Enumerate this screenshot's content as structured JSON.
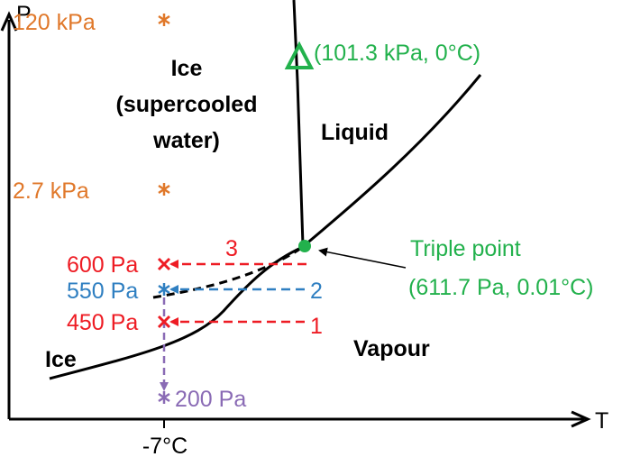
{
  "axes": {
    "y_label": "P",
    "x_label": "T",
    "x_tick": "-7°C"
  },
  "regions": {
    "ice_supercooled_line1": "Ice",
    "ice_supercooled_line2": "(supercooled",
    "ice_supercooled_line3": "water)",
    "liquid": "Liquid",
    "vapour": "Vapour",
    "ice": "Ice"
  },
  "pressure_labels": {
    "p120": "120 kPa",
    "p2_7": "2.7 kPa",
    "p600": "600 Pa",
    "p550": "550 Pa",
    "p450": "450 Pa",
    "p200": "200 Pa"
  },
  "points": {
    "ref_point": "(101.3 kPa, 0°C)",
    "triple_point_title": "Triple point",
    "triple_point_coords": "(611.7 Pa, 0.01°C)"
  },
  "path_numbers": {
    "n1": "1",
    "n2": "2",
    "n3": "3"
  },
  "colors": {
    "orange": "#e0782a",
    "green": "#22b14c",
    "red": "#ee1c24",
    "blue": "#2f7fc1",
    "purple": "#8a6bb5",
    "black": "#000000"
  }
}
